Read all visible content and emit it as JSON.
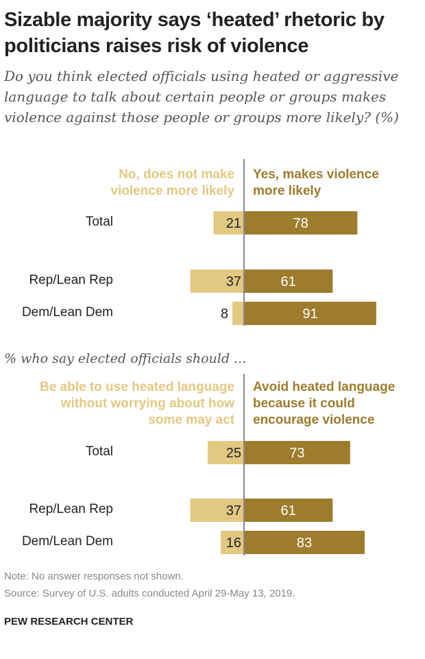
{
  "title": "Sizable majority says ‘heated’ rhetoric by politicians raises risk of violence",
  "subtitle": "Do you think elected officials using heated or aggressive language to talk about certain people or groups makes violence against those people or groups more likely? (%)",
  "note": "Note: No answer responses not shown.",
  "source": "Source: Survey of U.S. adults conducted April 29-May 13, 2019.",
  "brand": "PEW RESEARCH CENTER",
  "colors": {
    "left": "#e3c882",
    "right": "#9e7c2e",
    "axis": "#888888"
  },
  "chart_data": [
    {
      "type": "bar",
      "orientation": "horizontal-diverging",
      "categories": [
        "Total",
        "Rep/Lean Rep",
        "Dem/Lean Dem"
      ],
      "series": [
        {
          "name": "No, does not make violence more likely",
          "values": [
            21,
            37,
            8
          ]
        },
        {
          "name": "Yes, makes violence more likely",
          "values": [
            78,
            61,
            91
          ]
        }
      ]
    },
    {
      "type": "bar",
      "orientation": "horizontal-diverging",
      "title": "% who say elected officials should ...",
      "categories": [
        "Total",
        "Rep/Lean Rep",
        "Dem/Lean Dem"
      ],
      "series": [
        {
          "name": "Be able to use heated language without worrying about how some may act",
          "values": [
            25,
            37,
            16
          ]
        },
        {
          "name": "Avoid heated language because it could encourage violence",
          "values": [
            73,
            61,
            83
          ]
        }
      ]
    }
  ]
}
